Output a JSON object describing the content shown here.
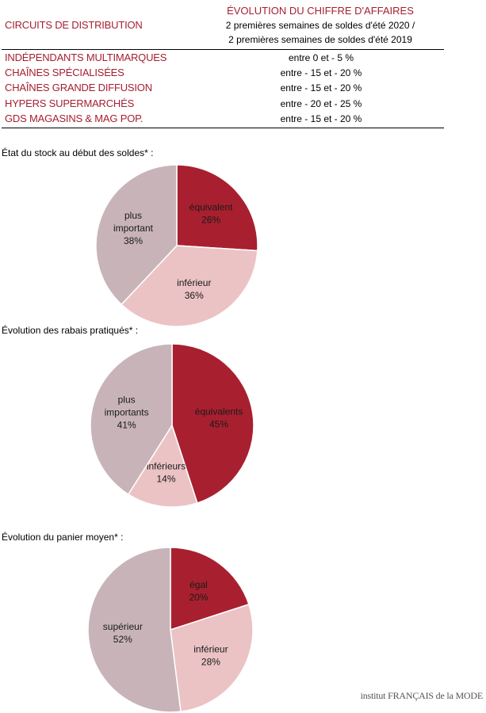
{
  "table": {
    "col1_header": "CIRCUITS DE DISTRIBUTION",
    "col2_header": {
      "title": "ÉVOLUTION DU CHIFFRE D'AFFAIRES",
      "line2": "2 premières semaines de soldes d'été 2020 /",
      "line3": "2 premières semaines de soldes d'été 2019"
    },
    "rows": [
      {
        "name": "INDÉPENDANTS MULTIMARQUES",
        "value": "entre 0 et - 5 %"
      },
      {
        "name": "CHAÎNES SPÉCIALISÉES",
        "value": "entre - 15 et - 20 %"
      },
      {
        "name": "CHAÎNES GRANDE DIFFUSION",
        "value": "entre - 15 et - 20 %"
      },
      {
        "name": "HYPERS SUPERMARCHÉS",
        "value": "entre - 20 et - 25 %"
      },
      {
        "name": "GDS MAGASINS & MAG POP.",
        "value": "entre - 15 et - 20 %"
      }
    ]
  },
  "colors": {
    "dark_red": "#a8202f",
    "light_pink": "#ebc3c5",
    "mauve": "#c8b4b8",
    "text_red": "#a51f2f"
  },
  "chart_data": [
    {
      "type": "pie",
      "title": "État du stock au début des soldes* :",
      "slices": [
        {
          "label": [
            "équivalent"
          ],
          "pct": "26%",
          "value": 26,
          "color": "#a8202f"
        },
        {
          "label": [
            "inférieur"
          ],
          "pct": "36%",
          "value": 36,
          "color": "#ebc3c5"
        },
        {
          "label": [
            "plus",
            "important"
          ],
          "pct": "38%",
          "value": 38,
          "color": "#c8b4b8"
        }
      ]
    },
    {
      "type": "pie",
      "title": "Évolution des rabais pratiqués* :",
      "slices": [
        {
          "label": [
            "équivalents"
          ],
          "pct": "45%",
          "value": 45,
          "color": "#a8202f"
        },
        {
          "label": [
            "inférieurs"
          ],
          "pct": "14%",
          "value": 14,
          "color": "#ebc3c5"
        },
        {
          "label": [
            "plus",
            "importants"
          ],
          "pct": "41%",
          "value": 41,
          "color": "#c8b4b8"
        }
      ]
    },
    {
      "type": "pie",
      "title": "Évolution du panier moyen* :",
      "slices": [
        {
          "label": [
            "égal"
          ],
          "pct": "20%",
          "value": 20,
          "color": "#a8202f"
        },
        {
          "label": [
            "inférieur"
          ],
          "pct": "28%",
          "value": 28,
          "color": "#ebc3c5"
        },
        {
          "label": [
            "supérieur"
          ],
          "pct": "52%",
          "value": 52,
          "color": "#c8b4b8"
        }
      ]
    }
  ],
  "footer": {
    "logo_text": "institut FRANÇAIS de la MODE"
  }
}
